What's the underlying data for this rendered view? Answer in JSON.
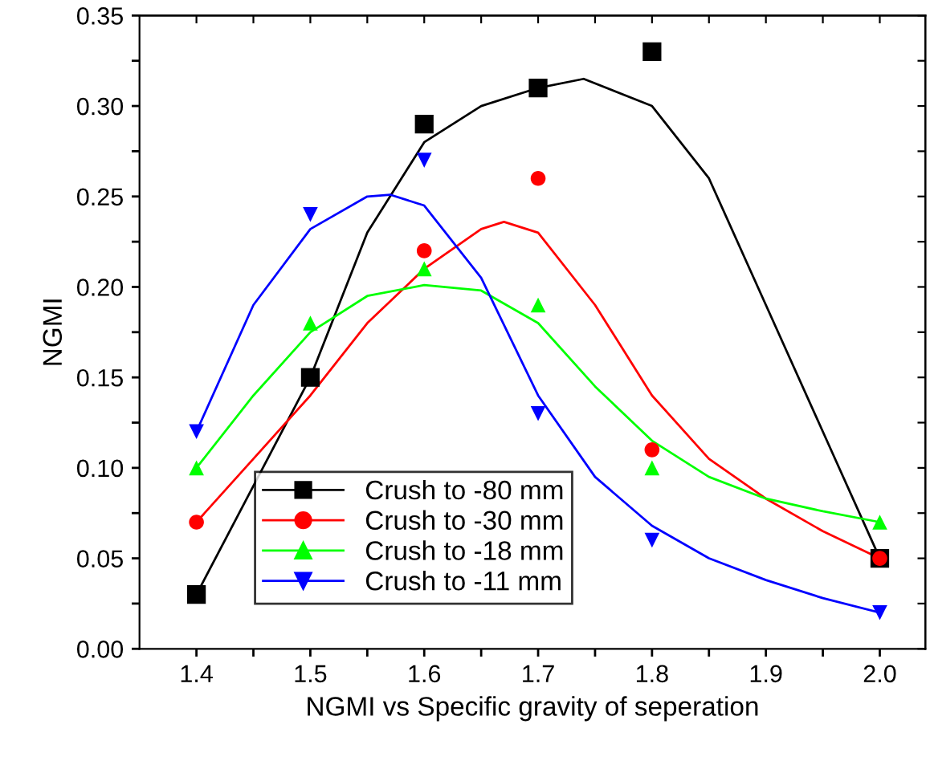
{
  "chart_data": {
    "type": "scatter",
    "xlabel": "NGMI vs Specific gravity of seperation",
    "ylabel": "NGMI",
    "xlim": [
      1.35,
      2.04
    ],
    "ylim": [
      0,
      0.35
    ],
    "xticks": [
      1.4,
      {
        "value": 1.45,
        "label": null
      },
      1.5,
      {
        "value": 1.55,
        "label": null
      },
      1.6,
      {
        "value": 1.65,
        "label": null
      },
      1.7,
      {
        "value": 1.75,
        "label": null
      },
      1.8,
      {
        "value": 1.85,
        "label": null
      },
      1.9,
      {
        "value": 1.95,
        "label": null
      },
      {
        "value": 2.0,
        "label": "2.0"
      }
    ],
    "yticks": [
      {
        "value": 0,
        "label": "0.00"
      },
      {
        "value": 0.025,
        "label": null
      },
      {
        "value": 0.05,
        "label": "0.05"
      },
      {
        "value": 0.075,
        "label": null
      },
      {
        "value": 0.1,
        "label": "0.10"
      },
      {
        "value": 0.125,
        "label": null
      },
      {
        "value": 0.15,
        "label": "0.15"
      },
      {
        "value": 0.175,
        "label": null
      },
      {
        "value": 0.2,
        "label": "0.20"
      },
      {
        "value": 0.225,
        "label": null
      },
      {
        "value": 0.25,
        "label": "0.25"
      },
      {
        "value": 0.275,
        "label": null
      },
      {
        "value": 0.3,
        "label": "0.30"
      },
      {
        "value": 0.325,
        "label": null
      },
      {
        "value": 0.35,
        "label": "0.35"
      }
    ],
    "grid": false,
    "legend": "bottom left",
    "series": [
      {
        "name": "Crush to -80 mm",
        "color": "#000000",
        "marker": "square",
        "x": [
          1.4,
          1.5,
          1.6,
          1.7,
          1.8,
          2.0
        ],
        "values": [
          0.03,
          0.15,
          0.29,
          0.31,
          0.33,
          0.05
        ]
      },
      {
        "name": "Crush to -30 mm",
        "color": "#ff0000",
        "marker": "circle",
        "x": [
          1.4,
          1.5,
          1.6,
          1.7,
          1.8,
          2.0
        ],
        "values": [
          0.07,
          null,
          0.22,
          0.26,
          0.11,
          0.05
        ]
      },
      {
        "name": "Crush to -18 mm",
        "color": "#00ff00",
        "marker": "triangle",
        "x": [
          1.4,
          1.5,
          1.6,
          1.7,
          1.8,
          2.0
        ],
        "values": [
          0.1,
          0.18,
          0.21,
          0.19,
          0.1,
          0.07
        ]
      },
      {
        "name": "Crush to -11 mm",
        "color": "#0000ff",
        "marker": "triangle_down",
        "x": [
          1.4,
          1.5,
          1.6,
          1.7,
          1.8,
          2.0
        ],
        "values": [
          0.12,
          0.24,
          0.27,
          0.13,
          0.06,
          0.02
        ]
      },
      {
        "type": "line",
        "color": "#000000",
        "x": [
          1.4,
          1.45,
          1.5,
          1.55,
          1.6,
          1.65,
          1.7,
          1.74,
          1.8,
          1.85,
          1.9,
          1.95,
          2.0
        ],
        "values": [
          0.03,
          0.09,
          0.15,
          0.23,
          0.28,
          0.3,
          0.31,
          0.315,
          0.3,
          0.26,
          0.19,
          0.12,
          0.05
        ]
      },
      {
        "type": "line",
        "color": "#ff0000",
        "x": [
          1.4,
          1.45,
          1.5,
          1.55,
          1.6,
          1.65,
          1.67,
          1.7,
          1.75,
          1.8,
          1.85,
          1.9,
          1.95,
          2.0
        ],
        "values": [
          0.07,
          0.105,
          0.14,
          0.18,
          0.21,
          0.232,
          0.236,
          0.23,
          0.19,
          0.14,
          0.105,
          0.083,
          0.065,
          0.05
        ]
      },
      {
        "type": "line",
        "color": "#00ff00",
        "x": [
          1.4,
          1.45,
          1.5,
          1.55,
          1.6,
          1.65,
          1.7,
          1.75,
          1.8,
          1.85,
          1.9,
          1.95,
          2.0
        ],
        "values": [
          0.1,
          0.14,
          0.175,
          0.195,
          0.201,
          0.198,
          0.18,
          0.145,
          0.115,
          0.095,
          0.083,
          0.076,
          0.07
        ]
      },
      {
        "type": "line",
        "color": "#0000ff",
        "x": [
          1.4,
          1.45,
          1.5,
          1.55,
          1.57,
          1.6,
          1.65,
          1.7,
          1.75,
          1.8,
          1.85,
          1.9,
          1.95,
          2.0
        ],
        "values": [
          0.12,
          0.19,
          0.232,
          0.25,
          0.251,
          0.245,
          0.205,
          0.14,
          0.095,
          0.068,
          0.05,
          0.038,
          0.028,
          0.02
        ]
      }
    ]
  }
}
